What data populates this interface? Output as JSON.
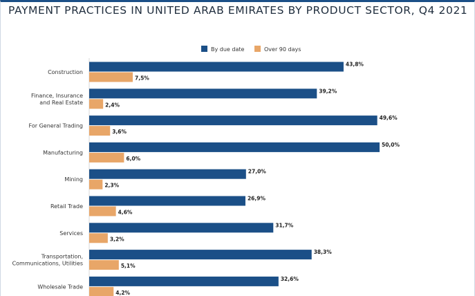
{
  "title": "PAYMENT PRACTICES IN UNITED ARAB EMIRATES BY PRODUCT SECTOR, Q4 2021",
  "chart_data": {
    "type": "bar",
    "orientation": "horizontal",
    "title": "PAYMENT PRACTICES IN UNITED ARAB EMIRATES BY PRODUCT SECTOR, Q4 2021",
    "categories": [
      [
        "Construction"
      ],
      [
        "Finance, Insurance",
        "and Real Estate"
      ],
      [
        "For General Trading"
      ],
      [
        "Manufacturing"
      ],
      [
        "Mining"
      ],
      [
        "Retail Trade"
      ],
      [
        "Services"
      ],
      [
        "Transportation,",
        "Communications, Utilities"
      ],
      [
        "Wholesale Trade"
      ]
    ],
    "series": [
      {
        "name": "By due date",
        "color": "#1b4f87",
        "values": [
          43.8,
          39.2,
          49.6,
          50.0,
          27.0,
          26.9,
          31.7,
          38.3,
          32.6
        ],
        "labels": [
          "43,8%",
          "39,2%",
          "49,6%",
          "50,0%",
          "27,0%",
          "26,9%",
          "31,7%",
          "38,3%",
          "32,6%"
        ]
      },
      {
        "name": "Over 90 days",
        "color": "#e8a668",
        "values": [
          7.5,
          2.4,
          3.6,
          6.0,
          2.3,
          4.6,
          3.2,
          5.1,
          4.2
        ],
        "labels": [
          "7,5%",
          "2,4%",
          "3,6%",
          "6,0%",
          "2,3%",
          "4,6%",
          "3,2%",
          "5,1%",
          "4,2%"
        ]
      }
    ],
    "xlim": [
      0,
      50
    ],
    "grid": false,
    "legend_position": "top"
  }
}
